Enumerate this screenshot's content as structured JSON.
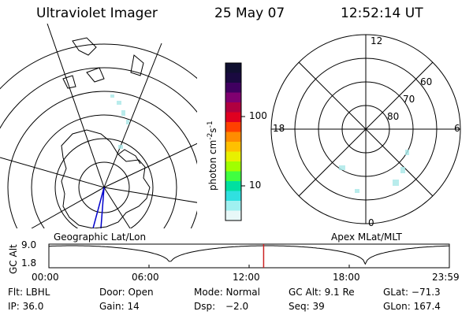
{
  "header": {
    "title": "Ultraviolet Imager",
    "date": "25 May 07",
    "time": "12:52:14 UT"
  },
  "colorbar": {
    "unit_label": "photon cm",
    "unit_sup1": "-2",
    "unit_mid": "s",
    "unit_sup2": "-1",
    "ticks": [
      "100",
      "10"
    ],
    "colors": [
      "#101030",
      "#1a0a40",
      "#400060",
      "#800070",
      "#b00040",
      "#e00020",
      "#ff4000",
      "#ff8c00",
      "#ffc000",
      "#e8f000",
      "#a0ff00",
      "#40ff40",
      "#00e0a0",
      "#30e0e0",
      "#a0f0f0",
      "#e8f8f8"
    ]
  },
  "maps": {
    "geo_label": "Geographic Lat/Lon",
    "polar_label": "Apex MLat/MLT",
    "polar_mlt": [
      "12",
      "18",
      "6",
      "0"
    ],
    "polar_mlat": [
      "60",
      "70",
      "80"
    ]
  },
  "altitude_plot": {
    "ylabel": "GC Alt",
    "yticks": [
      "9.0",
      "1.8"
    ],
    "xticks": [
      "00:00",
      "06:00",
      "12:00",
      "18:00",
      "23:59"
    ],
    "marker_time_hours": 12.87
  },
  "info": {
    "filt": "Flt: LBHL",
    "door": "Door: Open",
    "mode": "Mode: Normal",
    "gc_alt": "GC Alt: 9.1 Re",
    "glat": "GLat: −71.3",
    "ip": "IP: 36.0",
    "gain": "Gain: 14",
    "dsp_label": "Dsp:",
    "dsp_value": "−2.0",
    "seq": "Seq: 39",
    "glon": "GLon: 167.4"
  }
}
